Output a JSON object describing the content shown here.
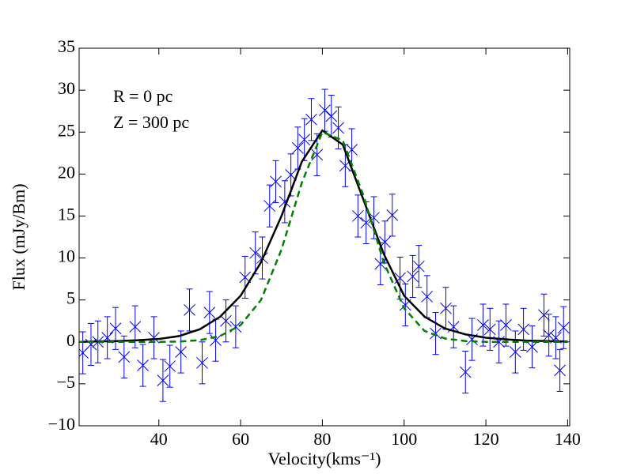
{
  "chart_data": {
    "type": "scatter",
    "xlabel": "Velocity(kms⁻¹)",
    "ylabel": "Flux (mJy/Bm)",
    "annotations": [
      "R = 0 pc",
      "Z = 300 pc"
    ],
    "xlim": [
      20.5,
      140.5
    ],
    "ylim": [
      -10,
      35
    ],
    "xticks": [
      40,
      60,
      80,
      100,
      120,
      140
    ],
    "yticks": [
      {
        "value": -10,
        "label": "−10"
      },
      {
        "value": -5,
        "label": "−5"
      },
      0,
      5,
      10,
      15,
      20,
      25,
      30,
      35
    ],
    "series": [
      {
        "type": "scatter",
        "color": "#0000ff",
        "x": [
          21.4,
          23.4,
          25.1,
          27.4,
          29.4,
          31.5,
          34.2,
          36.1,
          38.8,
          41.0,
          42.7,
          45.4,
          47.5,
          50.6,
          52.4,
          53.9,
          56.4,
          58.8,
          61.1,
          63.6,
          65.3,
          67.1,
          68.6,
          70.8,
          72.3,
          74.0,
          75.6,
          77.3,
          78.7,
          80.6,
          82.2,
          83.9,
          85.6,
          87.2,
          88.7,
          90.7,
          92.6,
          94.2,
          95.3,
          97.1,
          99.0,
          100.3,
          102.1,
          103.6,
          105.6,
          107.7,
          110.2,
          112.1,
          115.0,
          116.6,
          119.3,
          121.0,
          123.2,
          124.9,
          127.2,
          129.2,
          131.3,
          134.2,
          135.4,
          137.1,
          138.1,
          139.0
        ],
        "values": [
          -1.3,
          -0.3,
          0.0,
          0.5,
          1.6,
          -1.8,
          1.8,
          -2.8,
          0.5,
          -4.6,
          -2.9,
          -1.2,
          3.8,
          -2.5,
          3.5,
          0.2,
          2.5,
          1.8,
          7.7,
          10.6,
          10.0,
          16.2,
          19.1,
          16.7,
          19.9,
          23.1,
          24.1,
          26.5,
          22.3,
          27.6,
          26.9,
          25.5,
          21.0,
          22.9,
          15.0,
          14.2,
          14.8,
          9.3,
          11.9,
          15.1,
          7.6,
          4.4,
          7.8,
          9.0,
          5.4,
          1.0,
          4.0,
          1.8,
          -3.6,
          0.3,
          2.0,
          1.5,
          0.0,
          2.0,
          -1.2,
          1.5,
          -0.6,
          3.2,
          0.8,
          0.5,
          -3.4,
          1.7
        ],
        "errors": [
          2.5,
          2.5,
          2.5,
          2.5,
          2.5,
          2.5,
          2.5,
          2.5,
          2.5,
          2.5,
          2.5,
          2.5,
          2.5,
          2.5,
          2.5,
          2.5,
          2.5,
          2.5,
          2.5,
          2.5,
          2.5,
          2.5,
          2.5,
          2.5,
          2.5,
          2.5,
          2.5,
          2.5,
          2.5,
          2.5,
          2.5,
          2.5,
          2.5,
          2.5,
          2.5,
          2.5,
          2.5,
          2.5,
          2.5,
          2.5,
          2.5,
          2.5,
          2.5,
          2.5,
          2.5,
          2.5,
          2.5,
          2.5,
          2.5,
          2.5,
          2.5,
          2.5,
          2.5,
          2.5,
          2.5,
          2.5,
          2.5,
          2.5,
          2.5,
          2.5,
          2.5,
          2.5
        ]
      },
      {
        "type": "line",
        "color": "#000000",
        "style": "solid",
        "x": [
          20,
          25,
          30,
          35,
          40,
          45,
          50,
          55,
          60,
          65,
          70,
          75,
          80,
          85,
          90,
          95,
          100,
          105,
          110,
          115,
          120,
          125,
          130,
          135,
          140
        ],
        "values": [
          0.0,
          0.05,
          0.1,
          0.2,
          0.35,
          0.7,
          1.5,
          3.0,
          5.5,
          9.5,
          15.0,
          21.5,
          25.2,
          23.5,
          17.0,
          10.5,
          5.5,
          3.0,
          1.6,
          0.9,
          0.5,
          0.3,
          0.15,
          0.1,
          0.05
        ]
      },
      {
        "type": "line",
        "color": "#008000",
        "style": "dashed",
        "x": [
          20,
          25,
          30,
          35,
          40,
          45,
          50,
          55,
          60,
          65,
          70,
          75,
          80,
          85,
          90,
          95,
          100,
          105,
          110,
          115,
          120,
          125,
          130,
          135,
          140
        ],
        "values": [
          0,
          0,
          0,
          0,
          0,
          0.05,
          0.2,
          0.7,
          2.0,
          5.0,
          11.0,
          19.0,
          25.0,
          24.0,
          17.5,
          9.5,
          4.0,
          1.3,
          0.4,
          0.1,
          0,
          0,
          0,
          0,
          0
        ]
      }
    ]
  }
}
